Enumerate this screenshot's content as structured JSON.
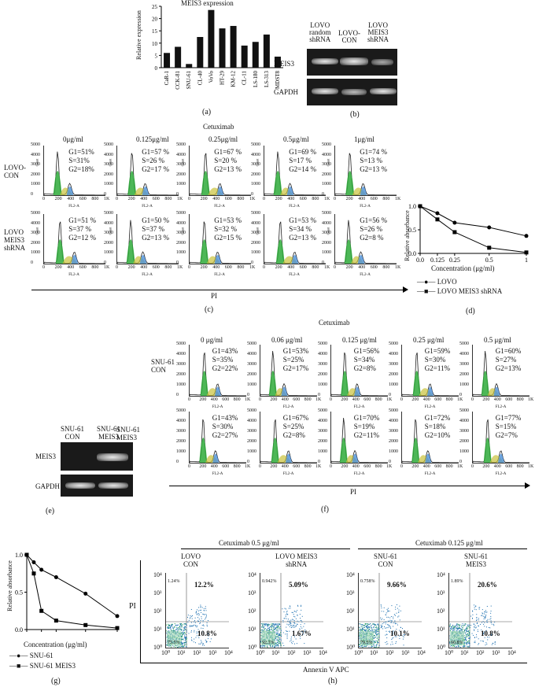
{
  "panel_a": {
    "label": "(a)",
    "chart_data": {
      "type": "bar",
      "title": "MEIS3 expression",
      "ylabel": "Relative expression",
      "ylim": [
        0,
        25
      ],
      "yticks": [
        "0",
        "5",
        "10",
        "15",
        "20",
        "25"
      ],
      "categories": [
        "CaR-1",
        "CCK-81",
        "SNU-61",
        "CL-40",
        "VoVo",
        "HT-29",
        "KM-12",
        "CL-11",
        "LS-180",
        "LS-313",
        "MDST8"
      ],
      "values": [
        6,
        8.5,
        1.5,
        12.5,
        23.5,
        16,
        17,
        9,
        10.5,
        13.5,
        4.5
      ]
    }
  },
  "panel_b": {
    "label": "(b)",
    "cols": [
      "LOVO\nrandom\nshRNA",
      "LOVO-\nCON",
      "LOVO\nMEIS3\nshRNA"
    ],
    "rows": [
      "MEIS3",
      "GAPDH"
    ]
  },
  "panel_c": {
    "label": "(c)",
    "title": "Cetuximab",
    "xaxis": "PI",
    "concentrations": [
      "0μg/ml",
      "0.125μg/ml",
      "0.25μg/ml",
      "0.5μg/ml",
      "1μg/ml"
    ],
    "row_labels": [
      "LOVO-\nCON",
      "LOVO\nMEIS3\nshRNA"
    ],
    "hist_xlabel": "FL2-A",
    "hist_ylabel": "Count",
    "stats": [
      [
        "G1=51%\nS=31%\nG2=18%",
        "G1=57 %\nS=26 %\nG2=17 %",
        "G1=67 %\nS=20 %\nG2=13 %",
        "G1=69 %\nS=17 %\nG2=14 %",
        "G1=74 %\nS=13 %\nG2=13 %"
      ],
      [
        "G1=51 %\nS=37 %\nG2=12 %",
        "G1=50 %\nS=37 %\nG2=13 %",
        "G1=53 %\nS=32 %\nG2=15 %",
        "G1=53 %\nS=34 %\nG2=13 %",
        "G1=56 %\nS=26 %\nG2=8 %"
      ]
    ]
  },
  "panel_d": {
    "label": "(d)",
    "chart_data": {
      "type": "line",
      "xlabel": "Concentration (μg/ml)",
      "ylabel": "Relative absorbance",
      "x": [
        0,
        0.125,
        0.25,
        0.5,
        1
      ],
      "xticklabels": [
        "0.0",
        "0.125",
        "0.25",
        "0.5",
        "1"
      ],
      "ylim": [
        0,
        1.0
      ],
      "yticks": [
        "0.0",
        "0.5",
        "1.0"
      ],
      "series": [
        {
          "name": "LOVO",
          "values": [
            1.0,
            0.85,
            0.65,
            0.55,
            0.37
          ]
        },
        {
          "name": "LOVO MEIS3 shRNA",
          "values": [
            1.0,
            0.72,
            0.45,
            0.12,
            0.02
          ]
        }
      ]
    }
  },
  "panel_e": {
    "label": "(e)",
    "cols": [
      "SNU-61\nCON",
      "SNU-61\nMEIS3"
    ],
    "rows": [
      "MEIS3",
      "GAPDH"
    ]
  },
  "panel_f": {
    "label": "(f)",
    "title": "Cetuximab",
    "xaxis": "PI",
    "concentrations": [
      "0 μg/ml",
      "0.06 μg/ml",
      "0.125 μg/ml",
      "0.25 μg/ml",
      "0.5 μg/ml"
    ],
    "row_labels": [
      "SNU-61\nCON",
      "SNU-61\nMEIS3"
    ],
    "hist_xlabel": "FL2-A",
    "stats": [
      [
        "G1=43%\nS=35%\nG2=22%",
        "G1=53%\nS=25%\nG2=17%",
        "G1=56%\nS=34%\nG2=8%",
        "G1=59%\nS=30%\nG2=11%",
        "G1=60%\nS=27%\nG2=13%"
      ],
      [
        "G1=43%\nS=30%\nG2=27%",
        "G1=67%\nS=25%\nG2=8%",
        "G1=70%\nS=19%\nG2=11%",
        "G1=72%\nS=18%\nG2=10%",
        "G1=77%\nS=15%\nG2=7%"
      ]
    ]
  },
  "panel_g": {
    "label": "(g)",
    "chart_data": {
      "type": "line",
      "xlabel": "Concentration (μg/ml)",
      "ylabel": "Relative absorbance",
      "x": [
        0,
        0.06,
        0.125,
        0.25,
        0.5,
        1
      ],
      "xticklabels": [
        "0.0",
        "0.125",
        "0.25",
        "0.5",
        "1"
      ],
      "ylim": [
        0,
        1.0
      ],
      "yticks": [
        "0.0",
        "0.5",
        "1.0"
      ],
      "series": [
        {
          "name": "SNU-61",
          "values": [
            1.0,
            0.9,
            0.8,
            0.7,
            0.48,
            0.18
          ]
        },
        {
          "name": "SNU-61 MEIS3",
          "values": [
            1.0,
            0.75,
            0.25,
            0.12,
            0.06,
            0.02
          ]
        }
      ]
    }
  },
  "panel_h": {
    "label": "(h)",
    "group_titles": [
      "Cetuximab 0.5 μg/ml",
      "Cetuximab 0.125 μg/ml"
    ],
    "plot_titles": [
      "LOVO\nCON",
      "LOVO MEIS3\nshRNA",
      "SNU-61\nCON",
      "SNU-61\nMEIS3"
    ],
    "ylabel": "PI",
    "xlabel": "Annexin V APC",
    "upper_right": [
      "12.2%",
      "5.09%",
      "9.66%",
      "20.6%"
    ],
    "lower_right": [
      "10.8%",
      "1.67%",
      "10.1%",
      "10.8%"
    ],
    "q1": [
      "1.24%",
      "0.942%",
      "0.758%",
      "1.89%"
    ],
    "q4": [
      "75.5%",
      "92.3%",
      "79.5%",
      "66.8%"
    ],
    "ticks": [
      "10⁰",
      "10¹",
      "10²",
      "10³",
      "10⁴"
    ]
  }
}
